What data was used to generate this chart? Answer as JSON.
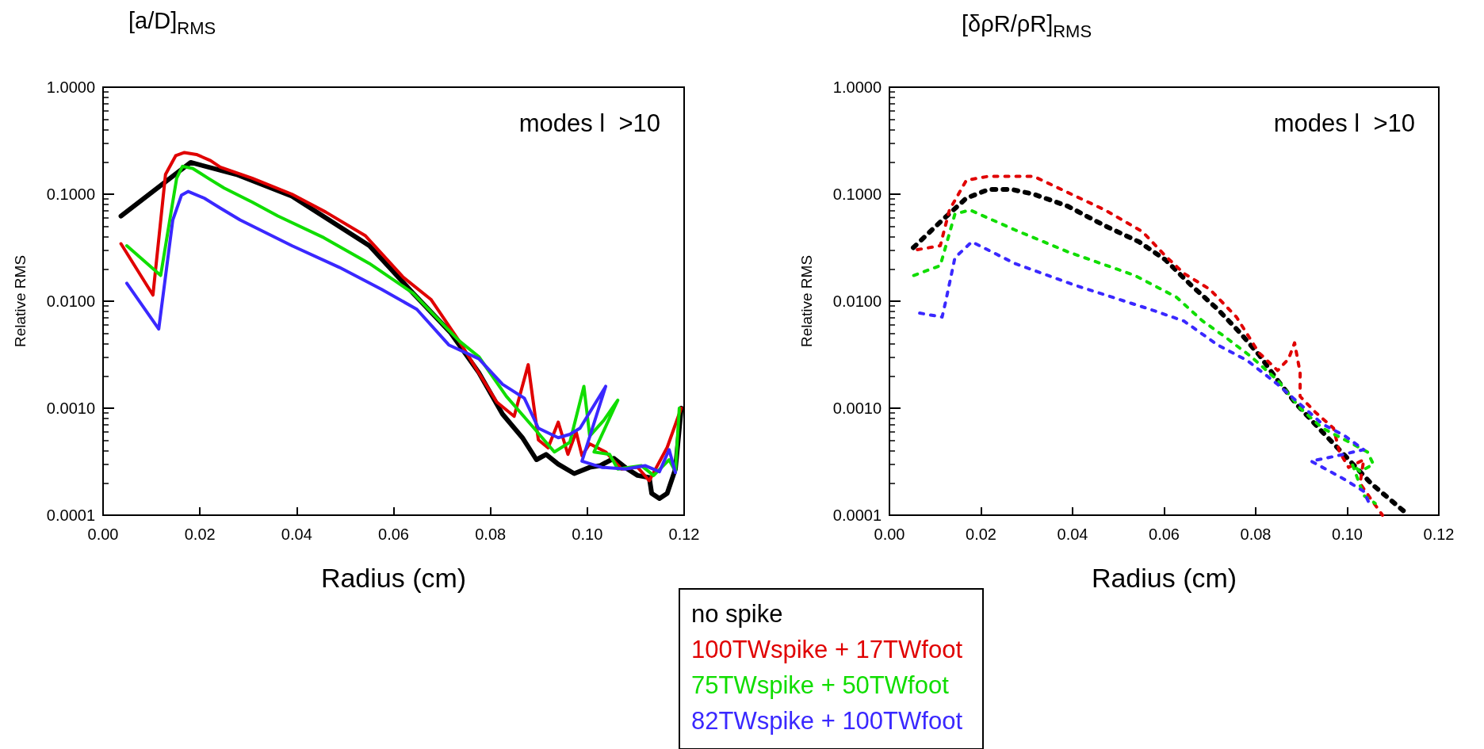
{
  "chart_data": [
    {
      "type": "line",
      "title": "[a/D]$_{RMS}$",
      "xlabel": "Radius (cm)",
      "ylabel": "Relative RMS",
      "annotations": [
        "modes l  >10"
      ],
      "log": "y",
      "grid": false,
      "legend": "bottom right",
      "marker": "none",
      "line_style": "solid",
      "xlim": [
        0,
        0.12
      ],
      "xticks": [
        {
          "value": 0,
          "label": "0.00"
        },
        {
          "value": 0.02,
          "label": "0.02"
        },
        {
          "value": 0.04,
          "label": "0.04"
        },
        {
          "value": 0.06,
          "label": "0.06"
        },
        {
          "value": 0.08,
          "label": "0.08"
        },
        {
          "value": 0.1,
          "label": "0.10"
        },
        {
          "value": 0.12,
          "label": "0.12"
        }
      ],
      "ylim": [
        0.0001,
        1
      ],
      "yticks": [
        {
          "value": 0.0001,
          "label": "0.0001"
        },
        {
          "value": 0.001,
          "label": "0.0010"
        },
        {
          "value": 0.01,
          "label": "0.0100"
        },
        {
          "value": 0.1,
          "label": "0.1000"
        },
        {
          "value": 1,
          "label": "1.0000"
        }
      ],
      "series": [
        {
          "name": "no spike",
          "color": "#000000",
          "x": [
            0.0037,
            0.0181,
            0.0275,
            0.039,
            0.055,
            0.064,
            0.0718,
            0.0776,
            0.0825,
            0.0866,
            0.0895,
            0.0915,
            0.094,
            0.0973,
            0.1005,
            0.1026,
            0.1055,
            0.1083,
            0.1104,
            0.1128,
            0.1133,
            0.1149,
            0.1165,
            0.1182,
            0.1194
          ],
          "values": [
            0.0625,
            0.198,
            0.153,
            0.0958,
            0.033,
            0.0119,
            0.00506,
            0.00215,
            0.00088,
            0.00053,
            0.00033,
            0.00037,
            0.0003,
            0.000245,
            0.00028,
            0.00029,
            0.00034,
            0.00027,
            0.000235,
            0.000225,
            0.00016,
            0.000143,
            0.00016,
            0.00027,
            0.001
          ]
        },
        {
          "name": "100TWspike + 17TWfoot",
          "color": "#e00000",
          "x": [
            0.0037,
            0.0103,
            0.0129,
            0.015,
            0.0168,
            0.0193,
            0.0222,
            0.0242,
            0.0308,
            0.039,
            0.046,
            0.0542,
            0.062,
            0.0677,
            0.0735,
            0.0813,
            0.0849,
            0.0878,
            0.0899,
            0.0919,
            0.094,
            0.096,
            0.0977,
            0.0989,
            0.1005,
            0.1038,
            0.105,
            0.1071,
            0.1104,
            0.1128,
            0.1165,
            0.1194
          ],
          "values": [
            0.0344,
            0.0114,
            0.153,
            0.229,
            0.245,
            0.235,
            0.206,
            0.179,
            0.141,
            0.1,
            0.068,
            0.0408,
            0.0167,
            0.0104,
            0.00427,
            0.00114,
            0.00084,
            0.00255,
            0.000506,
            0.000426,
            0.00074,
            0.00037,
            0.0006,
            0.00036,
            0.000464,
            0.00039,
            0.00034,
            0.00027,
            0.00028,
            0.00021,
            0.00043,
            0.001
          ]
        },
        {
          "name": "75TWspike + 50TWfoot",
          "color": "#10dd00",
          "x": [
            0.0049,
            0.0119,
            0.0152,
            0.0164,
            0.0185,
            0.0217,
            0.025,
            0.0308,
            0.0361,
            0.0456,
            0.055,
            0.064,
            0.0735,
            0.0776,
            0.0833,
            0.089,
            0.0932,
            0.0964,
            0.0993,
            0.1005,
            0.1034,
            0.1063,
            0.1014,
            0.1046,
            0.1063,
            0.1112,
            0.1137,
            0.1169,
            0.1182,
            0.119
          ],
          "values": [
            0.033,
            0.0174,
            0.141,
            0.182,
            0.174,
            0.141,
            0.114,
            0.0843,
            0.0625,
            0.0392,
            0.0225,
            0.0119,
            0.00427,
            0.00303,
            0.00129,
            0.00065,
            0.00039,
            0.00048,
            0.0016,
            0.00055,
            0.00077,
            0.00119,
            0.00039,
            0.00037,
            0.00027,
            0.00029,
            0.000235,
            0.00033,
            0.000255,
            0.001
          ]
        },
        {
          "name": "82TWspike + 100TWfoot",
          "color": "#3a28ff",
          "x": [
            0.0049,
            0.0115,
            0.0144,
            0.0162,
            0.0176,
            0.0209,
            0.0242,
            0.0283,
            0.039,
            0.0488,
            0.0575,
            0.0648,
            0.0714,
            0.0776,
            0.0825,
            0.087,
            0.0899,
            0.094,
            0.0964,
            0.0985,
            0.1038,
            0.0989,
            0.103,
            0.1079,
            0.112,
            0.1149,
            0.1169,
            0.1182
          ],
          "values": [
            0.0147,
            0.0055,
            0.0574,
            0.098,
            0.106,
            0.0918,
            0.0742,
            0.0574,
            0.033,
            0.0207,
            0.0129,
            0.0084,
            0.0039,
            0.0029,
            0.00167,
            0.00124,
            0.00065,
            0.00053,
            0.00057,
            0.00065,
            0.0016,
            0.00032,
            0.00028,
            0.00027,
            0.00029,
            0.000255,
            0.00041,
            0.00025
          ]
        }
      ]
    },
    {
      "type": "line",
      "title": "[δρR/ρR]$_{RMS}$",
      "xlabel": "Radius (cm)",
      "ylabel": "Relative RMS",
      "annotations": [
        "modes l  >10"
      ],
      "log": "y",
      "grid": false,
      "legend": false,
      "marker": "none",
      "line_style": "dotted",
      "xlim": [
        0,
        0.12
      ],
      "xticks": [
        {
          "value": 0,
          "label": "0.00"
        },
        {
          "value": 0.02,
          "label": "0.02"
        },
        {
          "value": 0.04,
          "label": "0.04"
        },
        {
          "value": 0.06,
          "label": "0.06"
        },
        {
          "value": 0.08,
          "label": "0.08"
        },
        {
          "value": 0.1,
          "label": "0.10"
        },
        {
          "value": 0.12,
          "label": "0.12"
        }
      ],
      "ylim": [
        0.0001,
        1
      ],
      "yticks": [
        {
          "value": 0.0001,
          "label": "0.0001"
        },
        {
          "value": 0.001,
          "label": "0.0010"
        },
        {
          "value": 0.01,
          "label": "0.0100"
        },
        {
          "value": 0.1,
          "label": "0.1000"
        },
        {
          "value": 1,
          "label": "1.0000"
        }
      ],
      "series": [
        {
          "color": "#000000",
          "x": [
            0.0052,
            0.0111,
            0.0168,
            0.0217,
            0.0266,
            0.0315,
            0.0389,
            0.0471,
            0.0545,
            0.0602,
            0.0659,
            0.0717,
            0.0766,
            0.0807,
            0.0848,
            0.0889,
            0.0938,
            0.0995,
            0.1052,
            0.1134
          ],
          "values": [
            0.0316,
            0.055,
            0.0918,
            0.111,
            0.111,
            0.1,
            0.0774,
            0.0506,
            0.0359,
            0.0245,
            0.0141,
            0.0084,
            0.00506,
            0.00316,
            0.00182,
            0.00109,
            0.00065,
            0.00036,
            0.000198,
            0.0001
          ]
        },
        {
          "color": "#e00000",
          "x": [
            0.0061,
            0.0111,
            0.0131,
            0.0168,
            0.0217,
            0.0315,
            0.0389,
            0.0471,
            0.0553,
            0.0602,
            0.0643,
            0.07,
            0.0758,
            0.0807,
            0.0848,
            0.0872,
            0.0885,
            0.0897,
            0.0897,
            0.093,
            0.097,
            0.0983,
            0.1003,
            0.1036,
            0.1028,
            0.1052,
            0.1077
          ],
          "values": [
            0.0303,
            0.033,
            0.0711,
            0.135,
            0.147,
            0.147,
            0.104,
            0.0711,
            0.0445,
            0.0267,
            0.0182,
            0.0129,
            0.00711,
            0.0033,
            0.00225,
            0.0029,
            0.00408,
            0.00215,
            0.00129,
            0.00092,
            0.00065,
            0.00039,
            0.00028,
            0.00033,
            0.000198,
            0.000141,
            0.0001
          ]
        },
        {
          "color": "#10dd00",
          "x": [
            0.0053,
            0.0111,
            0.0143,
            0.0176,
            0.0274,
            0.0389,
            0.0536,
            0.0627,
            0.0684,
            0.0733,
            0.079,
            0.0848,
            0.0897,
            0.0946,
            0.0995,
            0.1044,
            0.1057,
            0.1028,
            0.1011,
            0.1036,
            0.1061
          ],
          "values": [
            0.0174,
            0.0215,
            0.0653,
            0.0711,
            0.0464,
            0.029,
            0.0174,
            0.0109,
            0.00653,
            0.00464,
            0.00303,
            0.00182,
            0.001,
            0.00065,
            0.000506,
            0.00039,
            0.0003,
            0.000255,
            0.0003,
            0.000153,
            0.000129
          ]
        },
        {
          "color": "#3a28ff",
          "x": [
            0.0066,
            0.0115,
            0.0123,
            0.0143,
            0.018,
            0.0274,
            0.0405,
            0.0569,
            0.0643,
            0.0717,
            0.0782,
            0.0848,
            0.0897,
            0.0946,
            0.0995,
            0.1036,
            0.0979,
            0.0921,
            0.0995,
            0.1036,
            0.1048
          ],
          "values": [
            0.00774,
            0.00711,
            0.01,
            0.0255,
            0.0359,
            0.0225,
            0.0141,
            0.0084,
            0.00653,
            0.0039,
            0.00278,
            0.00167,
            0.00109,
            0.00071,
            0.00055,
            0.00041,
            0.00036,
            0.00032,
            0.000215,
            0.000167,
            0.000129
          ]
        }
      ]
    }
  ]
}
